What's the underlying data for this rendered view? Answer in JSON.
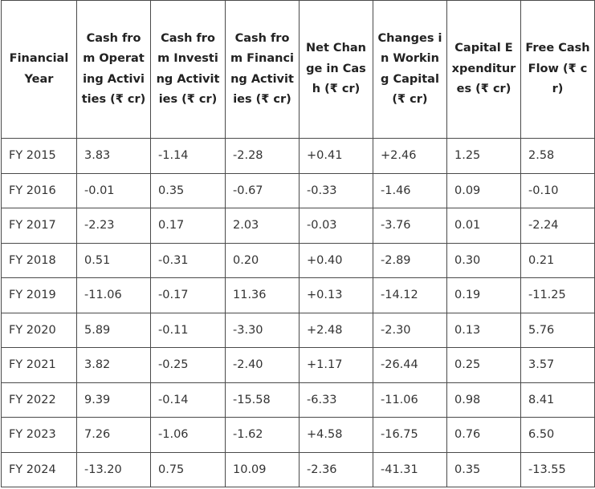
{
  "table": {
    "headers": [
      "Financial Year",
      "Cash from Operating Activities (₹ cr)",
      "Cash from Investing Activities (₹ cr)",
      "Cash from Financing Activities (₹ cr)",
      "Net Change in Cash (₹ cr)",
      "Changes in Working Capital (₹ cr)",
      "Capital Expenditures (₹ cr)",
      "Free Cash Flow (₹ cr)"
    ],
    "rows": [
      [
        "FY 2015",
        "3.83",
        "-1.14",
        "-2.28",
        "+0.41",
        "+2.46",
        "1.25",
        "2.58"
      ],
      [
        "FY 2016",
        "-0.01",
        "0.35",
        "-0.67",
        "-0.33",
        "-1.46",
        "0.09",
        "-0.10"
      ],
      [
        "FY 2017",
        "-2.23",
        "0.17",
        "2.03",
        "-0.03",
        "-3.76",
        "0.01",
        "-2.24"
      ],
      [
        "FY 2018",
        "0.51",
        "-0.31",
        "0.20",
        "+0.40",
        "-2.89",
        "0.30",
        "0.21"
      ],
      [
        "FY 2019",
        "-11.06",
        "-0.17",
        "11.36",
        "+0.13",
        "-14.12",
        "0.19",
        "-11.25"
      ],
      [
        "FY 2020",
        "5.89",
        "-0.11",
        "-3.30",
        "+2.48",
        "-2.30",
        "0.13",
        "5.76"
      ],
      [
        "FY 2021",
        "3.82",
        "-0.25",
        "-2.40",
        "+1.17",
        "-26.44",
        "0.25",
        "3.57"
      ],
      [
        "FY 2022",
        "9.39",
        "-0.14",
        "-15.58",
        "-6.33",
        "-11.06",
        "0.98",
        "8.41"
      ],
      [
        "FY 2023",
        "7.26",
        "-1.06",
        "-1.62",
        "+4.58",
        "-16.75",
        "0.76",
        "6.50"
      ],
      [
        "FY 2024",
        "-13.20",
        "0.75",
        "10.09",
        "-2.36",
        "-41.31",
        "0.35",
        "-13.55"
      ]
    ]
  }
}
